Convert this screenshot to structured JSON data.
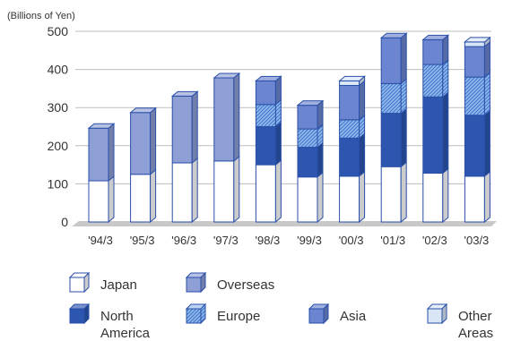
{
  "chart_data": {
    "type": "bar",
    "stacked": true,
    "unit_label": "(Billions of Yen)",
    "categories": [
      "'94/3",
      "'95/3",
      "'96/3",
      "'97/3",
      "'98/3",
      "'99/3",
      "'00/3",
      "'01/3",
      "'02/3",
      "'03/3"
    ],
    "ylim": [
      0,
      500
    ],
    "yticks": [
      0,
      100,
      200,
      300,
      400,
      500
    ],
    "grid": true,
    "series": [
      {
        "name": "Japan",
        "key": "japan",
        "color": "#ffffff",
        "values": [
          108,
          125,
          155,
          160,
          150,
          118,
          120,
          145,
          128,
          120
        ]
      },
      {
        "name": "Overseas",
        "key": "overseas",
        "color": "#8e9fd6",
        "values": [
          138,
          162,
          175,
          218,
          0,
          0,
          0,
          0,
          0,
          0
        ]
      },
      {
        "name": "North America",
        "key": "na",
        "color": "#2c56b0",
        "values": [
          0,
          0,
          0,
          0,
          100,
          78,
          100,
          140,
          200,
          160
        ]
      },
      {
        "name": "Europe",
        "key": "europe",
        "color": "#6f9ce0",
        "values": [
          0,
          0,
          0,
          0,
          58,
          48,
          48,
          78,
          85,
          100
        ]
      },
      {
        "name": "Asia",
        "key": "asia",
        "color": "#6b85d0",
        "values": [
          0,
          0,
          0,
          0,
          62,
          62,
          90,
          120,
          65,
          80
        ]
      },
      {
        "name": "Other Areas",
        "key": "other",
        "color": "#d8e6f5",
        "values": [
          0,
          0,
          0,
          0,
          0,
          0,
          12,
          0,
          0,
          12
        ]
      }
    ],
    "legend": {
      "items": [
        {
          "key": "japan",
          "lines": [
            "Japan"
          ]
        },
        {
          "key": "overseas",
          "lines": [
            "Overseas"
          ]
        },
        {
          "key": "na",
          "lines": [
            "North",
            "America"
          ]
        },
        {
          "key": "europe",
          "lines": [
            "Europe"
          ]
        },
        {
          "key": "asia",
          "lines": [
            "Asia"
          ]
        },
        {
          "key": "other",
          "lines": [
            "Other",
            "Areas"
          ]
        }
      ]
    }
  }
}
